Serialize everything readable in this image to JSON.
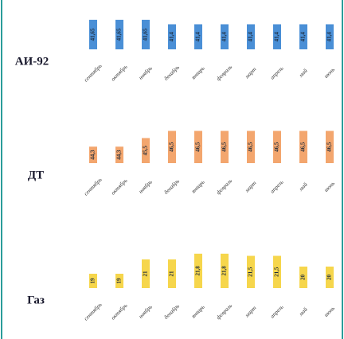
{
  "chart_data": [
    {
      "type": "bar",
      "title": "АИ-92",
      "color": "#4a8fd6",
      "categories": [
        "сентябрь",
        "октябрь",
        "ноябрь",
        "декабрь",
        "январь",
        "февраль",
        "март",
        "апрель",
        "май",
        "июнь"
      ],
      "values": [
        41.65,
        41.65,
        41.65,
        41.4,
        41.4,
        41.4,
        41.4,
        41.4,
        41.4,
        41.4
      ],
      "value_labels": [
        "41,65",
        "41,65",
        "41,65",
        "41,4",
        "41,4",
        "41,4",
        "41,4",
        "41,4",
        "41,4",
        "41,4"
      ],
      "ylim": [
        40,
        42
      ]
    },
    {
      "type": "bar",
      "title": "ДТ",
      "color": "#f3a66e",
      "categories": [
        "сентябрь",
        "октябрь",
        "ноябрь",
        "декабрь",
        "январь",
        "февраль",
        "март",
        "апрель",
        "май",
        "июнь"
      ],
      "values": [
        44.3,
        44.3,
        45.5,
        46.5,
        46.5,
        46.5,
        46.5,
        46.5,
        46.5,
        46.5
      ],
      "value_labels": [
        "44,3",
        "44,3",
        "45,5",
        "46,5",
        "46,5",
        "46,5",
        "46,5",
        "46,5",
        "46,5",
        "46,5"
      ],
      "ylim": [
        42,
        47
      ]
    },
    {
      "type": "bar",
      "title": "Газ",
      "color": "#f6d64c",
      "categories": [
        "сентябрь",
        "октябрь",
        "ноябрь",
        "декабрь",
        "январь",
        "февраль",
        "март",
        "апрель",
        "май",
        "июнь"
      ],
      "values": [
        19,
        19,
        21,
        21,
        21.8,
        21.8,
        21.5,
        21.5,
        20,
        20
      ],
      "value_labels": [
        "19",
        "19",
        "21",
        "21",
        "21,8",
        "21,8",
        "21,5",
        "21,5",
        "20",
        "20"
      ],
      "ylim": [
        17,
        22
      ]
    }
  ]
}
